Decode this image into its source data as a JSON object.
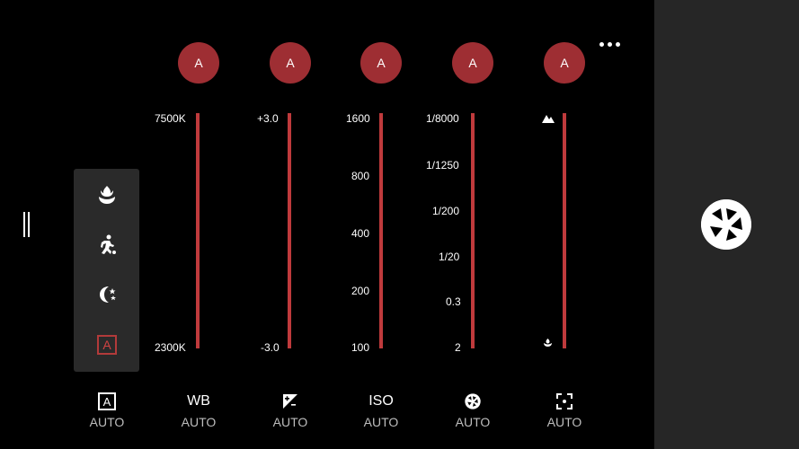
{
  "more_menu": {
    "icon": "more-horizontal-icon"
  },
  "handle": {
    "icon": "drag-handle-icon"
  },
  "scene_modes": [
    {
      "icon": "macro-flower-icon"
    },
    {
      "icon": "sports-runner-icon"
    },
    {
      "icon": "night-moon-icon"
    },
    {
      "icon": "auto-mode-icon",
      "label": "A"
    }
  ],
  "columns": [
    {
      "id": "scene",
      "button": "A",
      "bottom_icon_text": "A",
      "bottom_label": "AUTO"
    },
    {
      "id": "wb",
      "button": "A",
      "ticks": [
        "7500K",
        "2300K"
      ],
      "bottom_icon_text": "WB",
      "bottom_label": "AUTO"
    },
    {
      "id": "exposure",
      "button": "A",
      "ticks": [
        "+3.0",
        "-3.0"
      ],
      "bottom_icon": "exposure-icon",
      "bottom_label": "AUTO"
    },
    {
      "id": "iso",
      "button": "A",
      "ticks": [
        "1600",
        "800",
        "400",
        "200",
        "100"
      ],
      "bottom_icon_text": "ISO",
      "bottom_label": "AUTO"
    },
    {
      "id": "shutter",
      "button": "A",
      "ticks": [
        "1/8000",
        "1/1250",
        "1/200",
        "1/20",
        "0.3",
        "2"
      ],
      "bottom_icon": "aperture-icon",
      "bottom_label": "AUTO"
    },
    {
      "id": "focus",
      "button": "A",
      "ticks_icons": [
        "mountain-icon",
        "flower-small-icon"
      ],
      "bottom_icon": "focus-frame-icon",
      "bottom_label": "AUTO"
    }
  ],
  "shutter_button": {
    "icon": "shutter-aperture-icon"
  },
  "colors": {
    "accent": "#9e2e33",
    "slider": "#bf3a3c",
    "panel": "#2a2a2a",
    "side": "#262626"
  }
}
